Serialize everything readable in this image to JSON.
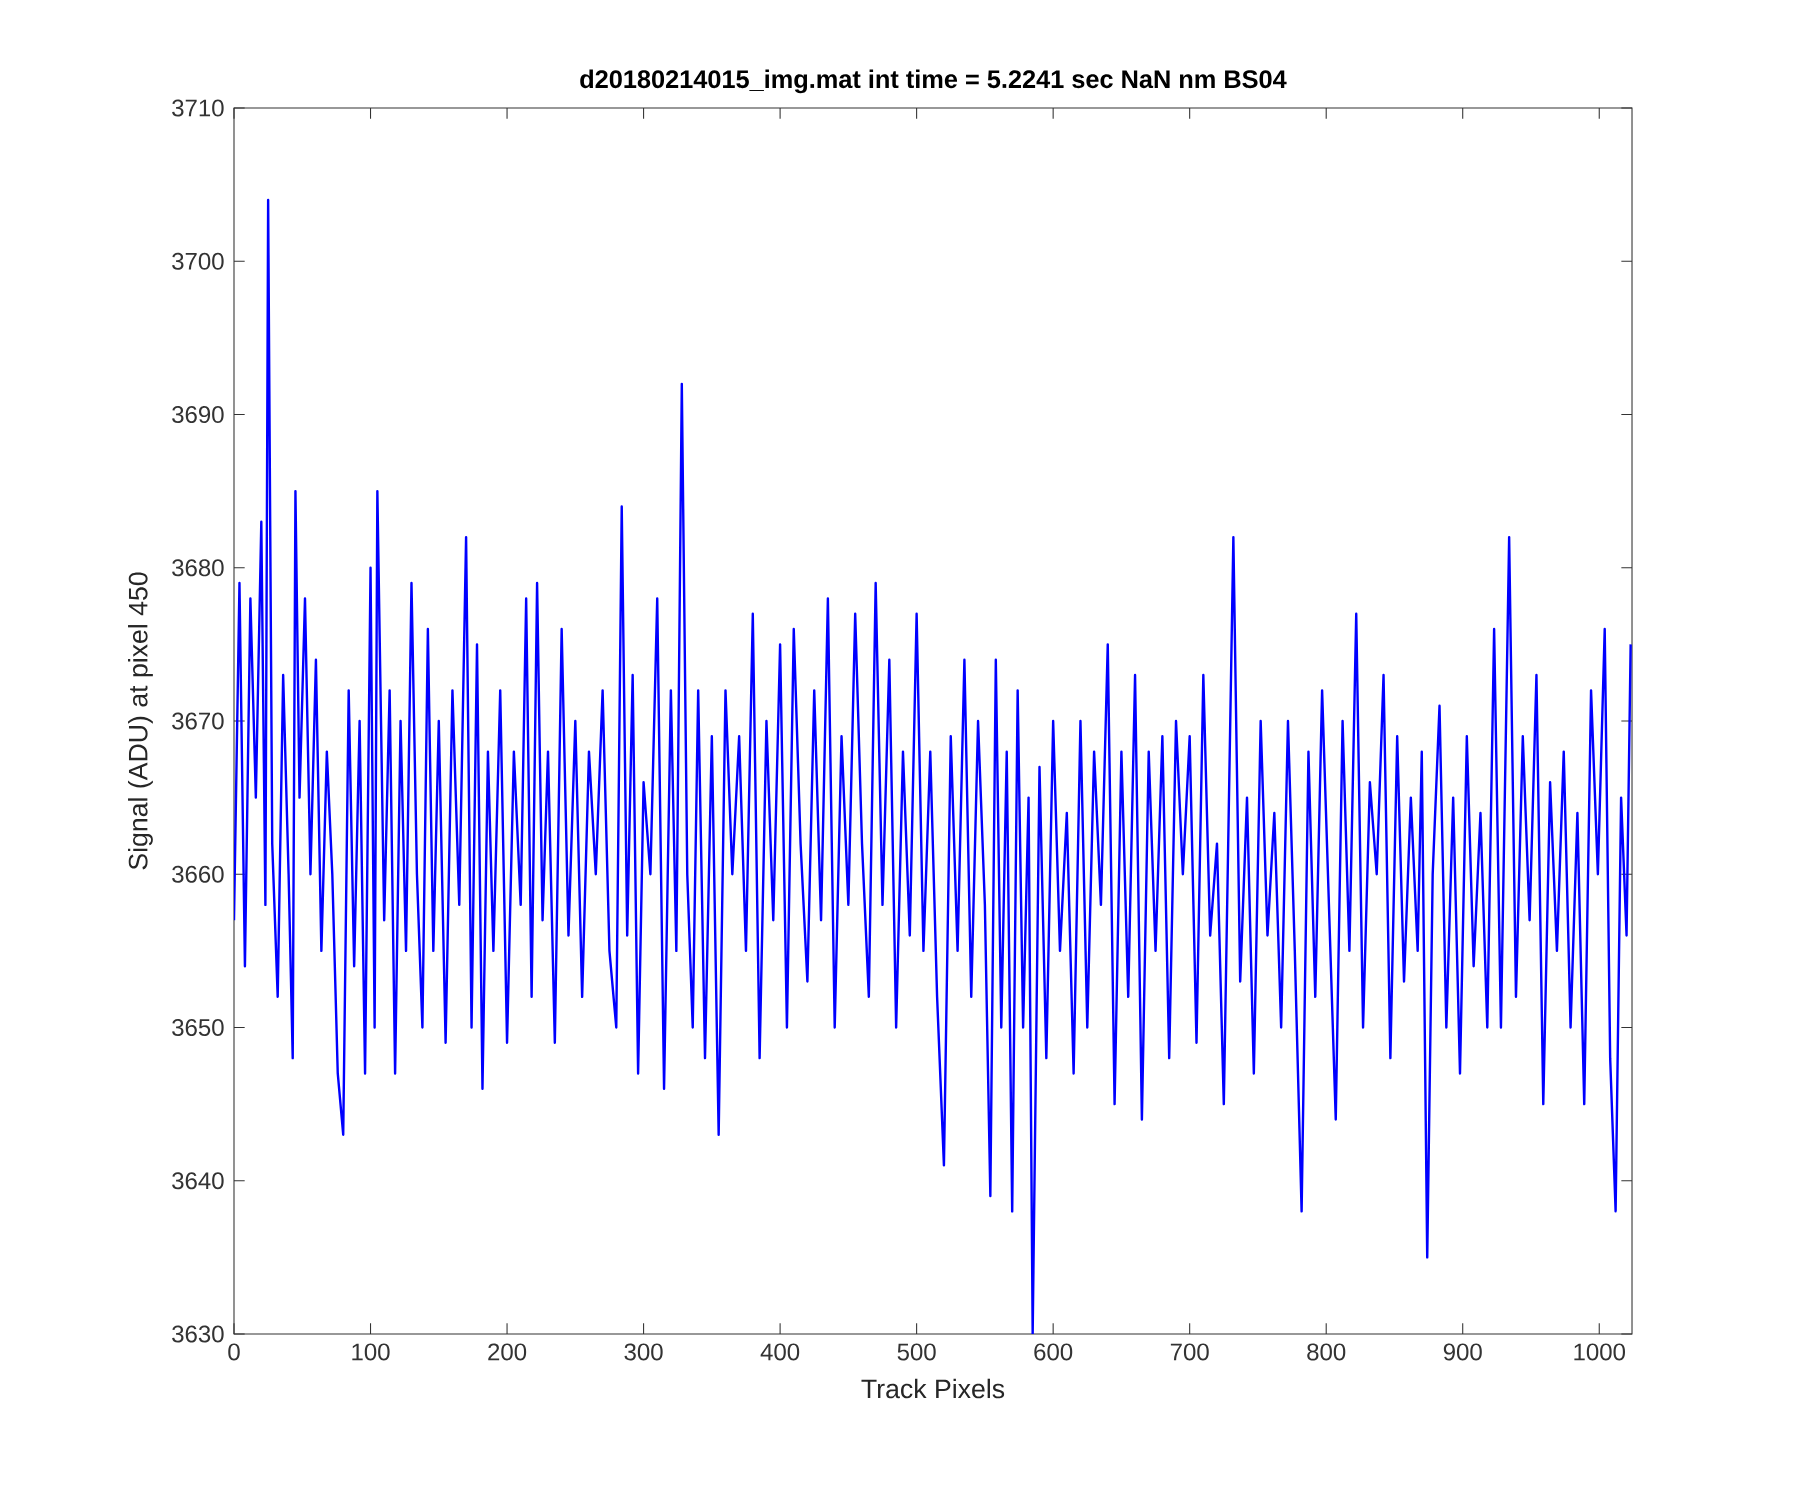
{
  "chart_data": {
    "type": "line",
    "title": "d20180214015_img.mat int time = 5.2241 sec  NaN nm BS04",
    "xlabel": "Track Pixels",
    "ylabel": "Signal (ADU) at pixel 450",
    "xlim": [
      0,
      1024
    ],
    "ylim": [
      3630,
      3710
    ],
    "xticks": [
      0,
      100,
      200,
      300,
      400,
      500,
      600,
      700,
      800,
      900,
      1000
    ],
    "yticks": [
      3630,
      3640,
      3650,
      3660,
      3670,
      3680,
      3690,
      3700,
      3710
    ],
    "series": [
      {
        "color": "#0000ff",
        "x": [
          0,
          4,
          8,
          12,
          16,
          20,
          23,
          25,
          28,
          32,
          36,
          40,
          43,
          45,
          48,
          52,
          56,
          60,
          64,
          68,
          72,
          76,
          80,
          84,
          88,
          92,
          96,
          100,
          103,
          105,
          110,
          114,
          118,
          122,
          126,
          130,
          134,
          138,
          142,
          146,
          150,
          155,
          160,
          165,
          170,
          174,
          178,
          182,
          186,
          190,
          195,
          200,
          205,
          210,
          214,
          218,
          222,
          226,
          230,
          235,
          240,
          245,
          250,
          255,
          260,
          265,
          270,
          275,
          280,
          284,
          288,
          292,
          296,
          300,
          305,
          310,
          315,
          320,
          324,
          328,
          332,
          336,
          340,
          345,
          350,
          355,
          360,
          365,
          370,
          375,
          380,
          385,
          390,
          395,
          400,
          405,
          410,
          415,
          420,
          425,
          430,
          435,
          440,
          445,
          450,
          455,
          460,
          465,
          470,
          475,
          480,
          485,
          490,
          495,
          500,
          505,
          510,
          515,
          520,
          525,
          530,
          535,
          540,
          545,
          550,
          554,
          558,
          562,
          566,
          570,
          574,
          578,
          582,
          585,
          590,
          595,
          600,
          605,
          610,
          615,
          620,
          625,
          630,
          635,
          640,
          645,
          650,
          655,
          660,
          665,
          670,
          675,
          680,
          685,
          690,
          695,
          700,
          705,
          710,
          715,
          720,
          725,
          732,
          737,
          742,
          747,
          752,
          757,
          762,
          767,
          772,
          777,
          782,
          787,
          792,
          797,
          802,
          807,
          812,
          817,
          822,
          827,
          832,
          837,
          842,
          847,
          852,
          857,
          862,
          867,
          870,
          874,
          878,
          883,
          888,
          893,
          898,
          903,
          908,
          913,
          918,
          923,
          928,
          934,
          939,
          944,
          949,
          954,
          959,
          964,
          969,
          974,
          979,
          984,
          989,
          994,
          999,
          1004,
          1008,
          1012,
          1016,
          1020,
          1023
        ],
        "values": [
          3657,
          3679,
          3654,
          3678,
          3665,
          3683,
          3658,
          3704,
          3662,
          3652,
          3673,
          3660,
          3648,
          3685,
          3665,
          3678,
          3660,
          3674,
          3655,
          3668,
          3660,
          3647,
          3643,
          3672,
          3654,
          3670,
          3647,
          3680,
          3650,
          3685,
          3657,
          3672,
          3647,
          3670,
          3655,
          3679,
          3660,
          3650,
          3676,
          3655,
          3670,
          3649,
          3672,
          3658,
          3682,
          3650,
          3675,
          3646,
          3668,
          3655,
          3672,
          3649,
          3668,
          3658,
          3678,
          3652,
          3679,
          3657,
          3668,
          3649,
          3676,
          3656,
          3670,
          3652,
          3668,
          3660,
          3672,
          3655,
          3650,
          3684,
          3656,
          3673,
          3647,
          3666,
          3660,
          3678,
          3646,
          3672,
          3655,
          3692,
          3660,
          3650,
          3672,
          3648,
          3669,
          3643,
          3672,
          3660,
          3669,
          3655,
          3677,
          3648,
          3670,
          3657,
          3675,
          3650,
          3676,
          3662,
          3653,
          3672,
          3657,
          3678,
          3650,
          3669,
          3658,
          3677,
          3662,
          3652,
          3679,
          3658,
          3674,
          3650,
          3668,
          3656,
          3677,
          3655,
          3668,
          3652,
          3641,
          3669,
          3655,
          3674,
          3652,
          3670,
          3658,
          3639,
          3674,
          3650,
          3668,
          3638,
          3672,
          3650,
          3665,
          3630,
          3667,
          3648,
          3670,
          3655,
          3664,
          3647,
          3670,
          3650,
          3668,
          3658,
          3675,
          3645,
          3668,
          3652,
          3673,
          3644,
          3668,
          3655,
          3669,
          3648,
          3670,
          3660,
          3669,
          3649,
          3673,
          3656,
          3662,
          3645,
          3682,
          3653,
          3665,
          3647,
          3670,
          3656,
          3664,
          3650,
          3670,
          3655,
          3638,
          3668,
          3652,
          3672,
          3658,
          3644,
          3670,
          3655,
          3677,
          3650,
          3666,
          3660,
          3673,
          3648,
          3669,
          3653,
          3665,
          3655,
          3668,
          3635,
          3660,
          3671,
          3650,
          3665,
          3647,
          3669,
          3654,
          3664,
          3650,
          3676,
          3650,
          3682,
          3652,
          3669,
          3657,
          3673,
          3645,
          3666,
          3655,
          3668,
          3650,
          3664,
          3645,
          3672,
          3660,
          3676,
          3648,
          3638,
          3665,
          3656,
          3675
        ]
      }
    ]
  }
}
